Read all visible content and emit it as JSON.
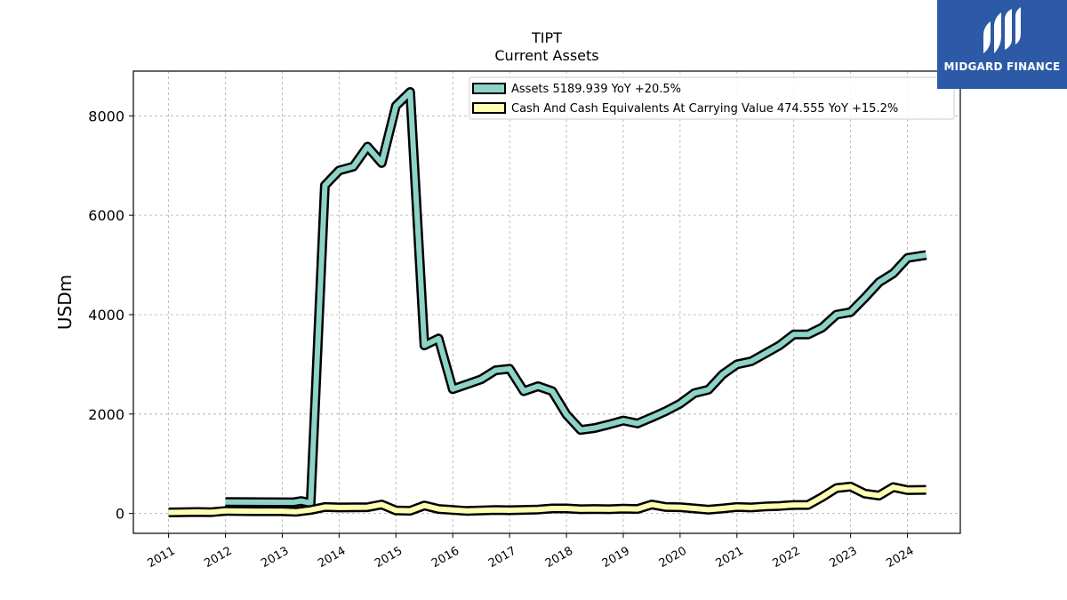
{
  "chart_data": {
    "type": "line",
    "title": "TIPT",
    "subtitle": "Current  Assets",
    "ylabel": "USDm",
    "ylim": [
      -400,
      8900
    ],
    "xlim": [
      2010.38,
      2024.93
    ],
    "yticks": [
      0,
      2000,
      4000,
      6000,
      8000
    ],
    "xticks": [
      2011,
      2012,
      2013,
      2014,
      2015,
      2016,
      2017,
      2018,
      2019,
      2020,
      2021,
      2022,
      2023,
      2024
    ],
    "grid": true,
    "legend_position": "top-right",
    "series": [
      {
        "name": "Assets  5189.939 YoY +20.5%",
        "color": "#8dd3c7",
        "points": [
          [
            2012.0,
            230
          ],
          [
            2013.2,
            225
          ],
          [
            2013.33,
            250
          ],
          [
            2013.5,
            210
          ],
          [
            2013.75,
            6600
          ],
          [
            2014.0,
            6900
          ],
          [
            2014.25,
            6980
          ],
          [
            2014.5,
            7380
          ],
          [
            2014.75,
            7050
          ],
          [
            2015.0,
            8200
          ],
          [
            2015.25,
            8480
          ],
          [
            2015.5,
            3380
          ],
          [
            2015.75,
            3520
          ],
          [
            2016.0,
            2500
          ],
          [
            2016.25,
            2600
          ],
          [
            2016.5,
            2700
          ],
          [
            2016.75,
            2880
          ],
          [
            2017.0,
            2910
          ],
          [
            2017.25,
            2460
          ],
          [
            2017.5,
            2560
          ],
          [
            2017.75,
            2460
          ],
          [
            2018.0,
            1990
          ],
          [
            2018.25,
            1680
          ],
          [
            2018.5,
            1720
          ],
          [
            2018.75,
            1790
          ],
          [
            2019.0,
            1870
          ],
          [
            2019.25,
            1810
          ],
          [
            2019.5,
            1930
          ],
          [
            2019.75,
            2060
          ],
          [
            2020.0,
            2210
          ],
          [
            2020.25,
            2420
          ],
          [
            2020.5,
            2490
          ],
          [
            2020.75,
            2800
          ],
          [
            2021.0,
            3000
          ],
          [
            2021.25,
            3060
          ],
          [
            2021.5,
            3220
          ],
          [
            2021.75,
            3380
          ],
          [
            2022.0,
            3600
          ],
          [
            2022.25,
            3600
          ],
          [
            2022.5,
            3740
          ],
          [
            2022.75,
            4000
          ],
          [
            2023.0,
            4050
          ],
          [
            2023.25,
            4340
          ],
          [
            2023.5,
            4650
          ],
          [
            2023.75,
            4830
          ],
          [
            2024.0,
            5140
          ],
          [
            2024.33,
            5200
          ]
        ]
      },
      {
        "name": "Cash And Cash Equivalents At Carrying Value  474.555 YoY +15.2%",
        "color": "#ffffb3",
        "points": [
          [
            2011.0,
            20
          ],
          [
            2011.5,
            30
          ],
          [
            2011.75,
            25
          ],
          [
            2012.0,
            50
          ],
          [
            2012.5,
            45
          ],
          [
            2013.0,
            45
          ],
          [
            2013.25,
            35
          ],
          [
            2013.5,
            70
          ],
          [
            2013.75,
            130
          ],
          [
            2014.0,
            120
          ],
          [
            2014.5,
            125
          ],
          [
            2014.75,
            180
          ],
          [
            2015.0,
            60
          ],
          [
            2015.25,
            55
          ],
          [
            2015.5,
            160
          ],
          [
            2015.75,
            90
          ],
          [
            2016.0,
            70
          ],
          [
            2016.25,
            50
          ],
          [
            2016.5,
            60
          ],
          [
            2016.75,
            70
          ],
          [
            2017.0,
            65
          ],
          [
            2017.5,
            80
          ],
          [
            2017.75,
            100
          ],
          [
            2018.0,
            100
          ],
          [
            2018.25,
            85
          ],
          [
            2018.5,
            90
          ],
          [
            2018.75,
            85
          ],
          [
            2019.0,
            95
          ],
          [
            2019.25,
            90
          ],
          [
            2019.5,
            180
          ],
          [
            2019.75,
            130
          ],
          [
            2020.0,
            125
          ],
          [
            2020.25,
            100
          ],
          [
            2020.5,
            75
          ],
          [
            2020.75,
            100
          ],
          [
            2021.0,
            130
          ],
          [
            2021.25,
            120
          ],
          [
            2021.5,
            140
          ],
          [
            2021.75,
            150
          ],
          [
            2022.0,
            170
          ],
          [
            2022.25,
            170
          ],
          [
            2022.5,
            330
          ],
          [
            2022.75,
            510
          ],
          [
            2023.0,
            540
          ],
          [
            2023.25,
            400
          ],
          [
            2023.5,
            360
          ],
          [
            2023.75,
            530
          ],
          [
            2024.0,
            470
          ],
          [
            2024.33,
            475
          ]
        ]
      }
    ]
  },
  "logo": {
    "text": "MIDGARD FINANCE"
  }
}
